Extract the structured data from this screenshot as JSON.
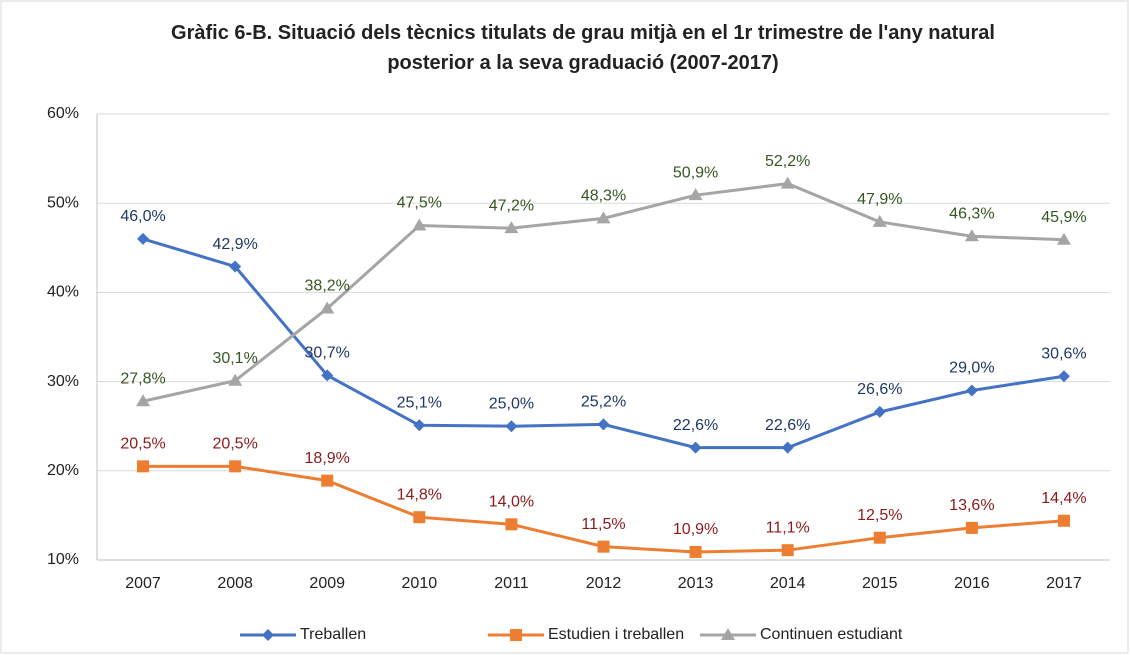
{
  "chart_data": {
    "type": "line",
    "title": "Gràfic 6-B. Situació dels tècnics titulats de grau mitjà en el 1r trimestre de l'any natural posterior a la seva graduació (2007-2017)",
    "categories": [
      "2007",
      "2008",
      "2009",
      "2010",
      "2011",
      "2012",
      "2013",
      "2014",
      "2015",
      "2016",
      "2017"
    ],
    "ylim": [
      10,
      60
    ],
    "yticks": [
      {
        "value": 10,
        "label": "10%"
      },
      {
        "value": 20,
        "label": "20%"
      },
      {
        "value": 30,
        "label": "30%"
      },
      {
        "value": 40,
        "label": "40%"
      },
      {
        "value": 50,
        "label": "50%"
      },
      {
        "value": 60,
        "label": "60%"
      }
    ],
    "grid": true,
    "legend": "bottom",
    "series": [
      {
        "name": "Treballen",
        "color": "#4472c4",
        "label_color": "#1f3864",
        "marker": "diamond",
        "values": [
          46.0,
          42.9,
          30.7,
          25.1,
          25.0,
          25.2,
          22.6,
          22.6,
          26.6,
          29.0,
          30.6
        ],
        "value_labels": [
          "46,0%",
          "42,9%",
          "30,7%",
          "25,1%",
          "25,0%",
          "25,2%",
          "22,6%",
          "22,6%",
          "26,6%",
          "29,0%",
          "30,6%"
        ]
      },
      {
        "name": "Estudien i treballen",
        "color": "#ed7d31",
        "label_color": "#8b1a1a",
        "marker": "square",
        "values": [
          20.5,
          20.5,
          18.9,
          14.8,
          14.0,
          11.5,
          10.9,
          11.1,
          12.5,
          13.6,
          14.4
        ],
        "value_labels": [
          "20,5%",
          "20,5%",
          "18,9%",
          "14,8%",
          "14,0%",
          "11,5%",
          "10,9%",
          "11,1%",
          "12,5%",
          "13,6%",
          "14,4%"
        ]
      },
      {
        "name": "Continuen estudiant",
        "color": "#a5a5a5",
        "label_color": "#375623",
        "marker": "triangle",
        "values": [
          27.8,
          30.1,
          38.2,
          47.5,
          47.2,
          48.3,
          50.9,
          52.2,
          47.9,
          46.3,
          45.9
        ],
        "value_labels": [
          "27,8%",
          "30,1%",
          "38,2%",
          "47,5%",
          "47,2%",
          "48,3%",
          "50,9%",
          "52,2%",
          "47,9%",
          "46,3%",
          "45,9%"
        ]
      }
    ]
  }
}
